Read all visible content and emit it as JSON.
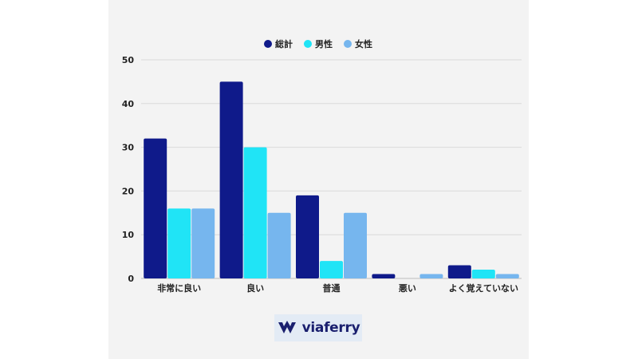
{
  "chart_data": {
    "type": "bar",
    "categories": [
      "非常に良い",
      "良い",
      "普通",
      "悪い",
      "よく覚えていない"
    ],
    "series": [
      {
        "name": "総計",
        "values": [
          32,
          45,
          19,
          1,
          3
        ],
        "color": "#0f1a8a"
      },
      {
        "name": "男性",
        "values": [
          16,
          30,
          4,
          0,
          2
        ],
        "color": "#20e4f6"
      },
      {
        "name": "女性",
        "values": [
          16,
          15,
          15,
          1,
          1
        ],
        "color": "#76b6ee"
      }
    ],
    "ylim": [
      0,
      50
    ],
    "yticks": [
      0,
      10,
      20,
      30,
      40,
      50
    ],
    "grid": true,
    "legend_position": "top-center"
  },
  "logo": {
    "text": "viaferry",
    "icon": "viaferry-v-icon"
  }
}
